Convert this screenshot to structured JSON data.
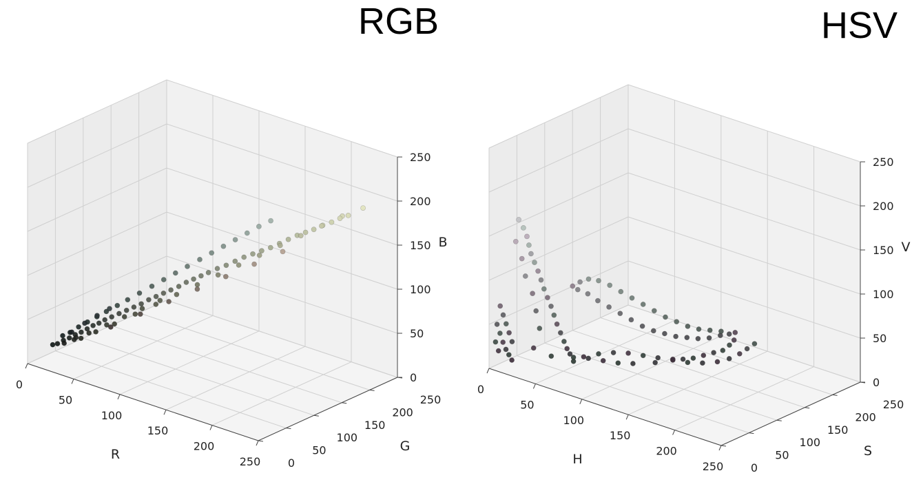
{
  "chart_data": [
    {
      "type": "scatter3d",
      "title": "RGB",
      "xlabel": "R",
      "ylabel": "G",
      "zlabel": "B",
      "xlim": [
        0,
        250
      ],
      "ylim": [
        0,
        250
      ],
      "zlim": [
        0,
        250
      ],
      "xticks": [
        "0",
        "50",
        "100",
        "150",
        "200",
        "250"
      ],
      "yticks": [
        "0",
        "50",
        "100",
        "150",
        "200",
        "250"
      ],
      "zticks": [
        "0",
        "50",
        "100",
        "150",
        "200",
        "250"
      ],
      "grid": true,
      "points": [
        [
          14,
          22,
          20
        ],
        [
          18,
          24,
          22
        ],
        [
          22,
          28,
          26
        ],
        [
          26,
          32,
          29
        ],
        [
          30,
          36,
          33
        ],
        [
          34,
          40,
          36
        ],
        [
          38,
          44,
          40
        ],
        [
          42,
          48,
          44
        ],
        [
          46,
          52,
          47
        ],
        [
          50,
          56,
          51
        ],
        [
          55,
          60,
          55
        ],
        [
          60,
          65,
          59
        ],
        [
          65,
          70,
          63
        ],
        [
          70,
          75,
          67
        ],
        [
          75,
          80,
          71
        ],
        [
          80,
          85,
          76
        ],
        [
          85,
          90,
          80
        ],
        [
          90,
          95,
          84
        ],
        [
          95,
          100,
          88
        ],
        [
          100,
          106,
          92
        ],
        [
          105,
          111,
          97
        ],
        [
          110,
          116,
          101
        ],
        [
          115,
          121,
          105
        ],
        [
          120,
          126,
          109
        ],
        [
          126,
          132,
          114
        ],
        [
          132,
          138,
          118
        ],
        [
          138,
          144,
          123
        ],
        [
          144,
          150,
          128
        ],
        [
          150,
          156,
          132
        ],
        [
          156,
          162,
          136
        ],
        [
          162,
          168,
          140
        ],
        [
          168,
          174,
          145
        ],
        [
          174,
          180,
          150
        ],
        [
          180,
          186,
          155
        ],
        [
          186,
          191,
          159
        ],
        [
          192,
          196,
          163
        ],
        [
          198,
          202,
          168
        ],
        [
          204,
          208,
          172
        ],
        [
          210,
          213,
          177
        ],
        [
          216,
          218,
          181
        ],
        [
          20,
          30,
          30
        ],
        [
          25,
          35,
          34
        ],
        [
          30,
          42,
          40
        ],
        [
          36,
          48,
          46
        ],
        [
          42,
          55,
          52
        ],
        [
          48,
          62,
          58
        ],
        [
          55,
          70,
          65
        ],
        [
          62,
          77,
          72
        ],
        [
          70,
          85,
          80
        ],
        [
          78,
          94,
          88
        ],
        [
          86,
          102,
          96
        ],
        [
          94,
          110,
          104
        ],
        [
          102,
          118,
          112
        ],
        [
          110,
          127,
          120
        ],
        [
          118,
          135,
          128
        ],
        [
          126,
          143,
          136
        ],
        [
          134,
          151,
          144
        ],
        [
          142,
          159,
          152
        ],
        [
          150,
          167,
          160
        ],
        [
          158,
          175,
          167
        ],
        [
          35,
          38,
          30
        ],
        [
          45,
          48,
          38
        ],
        [
          58,
          60,
          48
        ],
        [
          72,
          74,
          60
        ],
        [
          86,
          88,
          72
        ],
        [
          100,
          102,
          84
        ],
        [
          114,
          116,
          96
        ],
        [
          128,
          130,
          108
        ],
        [
          142,
          144,
          120
        ],
        [
          156,
          158,
          132
        ],
        [
          170,
          172,
          144
        ],
        [
          184,
          186,
          156
        ],
        [
          198,
          200,
          168
        ],
        [
          212,
          214,
          180
        ],
        [
          226,
          228,
          190
        ],
        [
          30,
          34,
          28
        ],
        [
          40,
          44,
          36
        ],
        [
          52,
          56,
          46
        ],
        [
          64,
          68,
          56
        ],
        [
          76,
          80,
          66
        ],
        [
          88,
          92,
          76
        ],
        [
          60,
          50,
          48
        ],
        [
          80,
          70,
          64
        ],
        [
          100,
          88,
          80
        ],
        [
          120,
          106,
          96
        ],
        [
          140,
          124,
          112
        ],
        [
          160,
          142,
          128
        ],
        [
          180,
          160,
          144
        ],
        [
          24,
          26,
          24
        ],
        [
          32,
          34,
          31
        ],
        [
          28,
          33,
          36
        ],
        [
          36,
          43,
          46
        ],
        [
          44,
          52,
          55
        ],
        [
          52,
          61,
          63
        ]
      ]
    },
    {
      "type": "scatter3d",
      "title": "HSV",
      "xlabel": "H",
      "ylabel": "S",
      "zlabel": "V",
      "xlim": [
        0,
        250
      ],
      "ylim": [
        0,
        250
      ],
      "zlim": [
        0,
        250
      ],
      "xticks": [
        "0",
        "50",
        "100",
        "150",
        "200",
        "250"
      ],
      "yticks": [
        "0",
        "50",
        "100",
        "150",
        "200",
        "250"
      ],
      "zticks": [
        "0",
        "50",
        "100",
        "150",
        "200",
        "250"
      ],
      "grid": true,
      "points": [
        [
          20,
          20,
          170
        ],
        [
          22,
          25,
          160
        ],
        [
          24,
          28,
          150
        ],
        [
          25,
          30,
          140
        ],
        [
          26,
          32,
          130
        ],
        [
          28,
          35,
          120
        ],
        [
          30,
          38,
          110
        ],
        [
          32,
          40,
          100
        ],
        [
          34,
          42,
          90
        ],
        [
          36,
          45,
          80
        ],
        [
          38,
          48,
          70
        ],
        [
          40,
          50,
          60
        ],
        [
          42,
          52,
          50
        ],
        [
          44,
          55,
          40
        ],
        [
          46,
          58,
          30
        ],
        [
          48,
          60,
          22
        ],
        [
          50,
          62,
          16
        ],
        [
          52,
          65,
          12
        ],
        [
          18,
          18,
          145
        ],
        [
          21,
          24,
          125
        ],
        [
          23,
          27,
          105
        ],
        [
          27,
          33,
          85
        ],
        [
          29,
          36,
          65
        ],
        [
          31,
          39,
          45
        ],
        [
          6,
          10,
          70
        ],
        [
          8,
          12,
          60
        ],
        [
          10,
          14,
          50
        ],
        [
          12,
          16,
          40
        ],
        [
          14,
          18,
          30
        ],
        [
          5,
          6,
          50
        ],
        [
          7,
          8,
          40
        ],
        [
          9,
          10,
          30
        ],
        [
          11,
          12,
          22
        ],
        [
          13,
          14,
          16
        ],
        [
          15,
          16,
          10
        ],
        [
          4,
          5,
          30
        ],
        [
          6,
          7,
          20
        ],
        [
          30,
          30,
          25
        ],
        [
          40,
          45,
          15
        ],
        [
          55,
          60,
          10
        ],
        [
          60,
          70,
          14
        ],
        [
          70,
          80,
          18
        ],
        [
          80,
          90,
          20
        ],
        [
          90,
          100,
          20
        ],
        [
          100,
          110,
          18
        ],
        [
          110,
          120,
          16
        ],
        [
          120,
          130,
          14
        ],
        [
          130,
          140,
          12
        ],
        [
          140,
          150,
          12
        ],
        [
          150,
          160,
          14
        ],
        [
          158,
          168,
          18
        ],
        [
          165,
          175,
          24
        ],
        [
          170,
          180,
          30
        ],
        [
          175,
          185,
          36
        ],
        [
          60,
          50,
          100
        ],
        [
          65,
          55,
          105
        ],
        [
          70,
          62,
          108
        ],
        [
          76,
          70,
          106
        ],
        [
          82,
          80,
          100
        ],
        [
          88,
          90,
          92
        ],
        [
          94,
          100,
          84
        ],
        [
          100,
          110,
          76
        ],
        [
          106,
          120,
          68
        ],
        [
          112,
          130,
          60
        ],
        [
          118,
          140,
          54
        ],
        [
          124,
          150,
          48
        ],
        [
          130,
          160,
          44
        ],
        [
          136,
          170,
          42
        ],
        [
          142,
          180,
          40
        ],
        [
          62,
          56,
          95
        ],
        [
          68,
          64,
          90
        ],
        [
          74,
          72,
          82
        ],
        [
          80,
          82,
          74
        ],
        [
          86,
          92,
          66
        ],
        [
          92,
          102,
          58
        ],
        [
          98,
          112,
          50
        ],
        [
          104,
          122,
          44
        ],
        [
          110,
          132,
          40
        ],
        [
          116,
          142,
          36
        ],
        [
          122,
          152,
          34
        ],
        [
          128,
          162,
          32
        ],
        [
          134,
          172,
          32
        ],
        [
          140,
          182,
          34
        ],
        [
          146,
          188,
          36
        ],
        [
          150,
          192,
          38
        ],
        [
          150,
          190,
          30
        ],
        [
          148,
          185,
          25
        ],
        [
          145,
          178,
          20
        ],
        [
          140,
          170,
          18
        ],
        [
          135,
          160,
          16
        ],
        [
          130,
          150,
          14
        ],
        [
          125,
          140,
          14
        ],
        [
          120,
          130,
          15
        ],
        [
          110,
          115,
          12
        ],
        [
          95,
          100,
          10
        ],
        [
          85,
          90,
          10
        ],
        [
          75,
          80,
          12
        ],
        [
          65,
          70,
          14
        ]
      ]
    }
  ]
}
